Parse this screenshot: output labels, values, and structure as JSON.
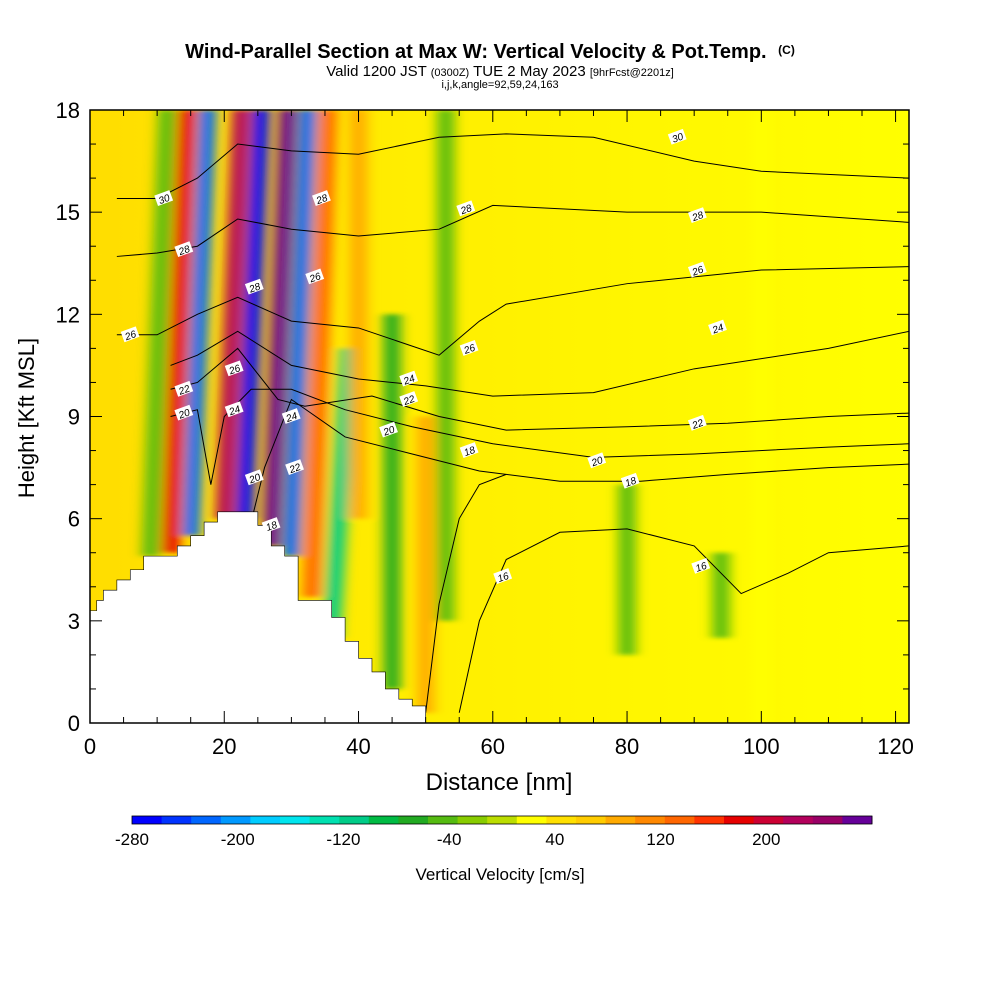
{
  "chart_data": {
    "type": "heatmap",
    "title": "Wind-Parallel Section at Max W: Vertical Velocity & Pot.Temp.",
    "title_suffix": "(C)",
    "subtitle": {
      "valid": "Valid 1200 JST",
      "utc": "(0300Z)",
      "date": "TUE 2 May 2023",
      "fcst": "[9hrFcst@2201z]"
    },
    "indices_line": "i,j,k,angle=92,59,24,163",
    "xlabel": "Distance [nm]",
    "ylabel": "Height [Kft MSL]",
    "xlim": [
      0,
      122
    ],
    "ylim": [
      0,
      18
    ],
    "x_ticks": [
      0,
      20,
      40,
      60,
      80,
      100,
      120
    ],
    "y_ticks": [
      0,
      3,
      6,
      9,
      12,
      15,
      18
    ],
    "colorbar": {
      "label": "Vertical Velocity [cm/s]",
      "tick_labels": [
        "-280",
        "-200",
        "-120",
        "-40",
        "40",
        "120",
        "200"
      ],
      "tick_values": [
        -280,
        -200,
        -120,
        -40,
        40,
        120,
        200
      ],
      "range": [
        -280,
        280
      ],
      "colors": [
        "#0000ff",
        "#0033ff",
        "#0066ff",
        "#0099ff",
        "#00ccff",
        "#00e5ee",
        "#00e0b0",
        "#00cc88",
        "#00bb44",
        "#22aa22",
        "#55bb11",
        "#88cc00",
        "#bbdd00",
        "#ffff00",
        "#ffe000",
        "#ffcc00",
        "#ffaa00",
        "#ff8800",
        "#ff6600",
        "#ff3300",
        "#e60000",
        "#cc0033",
        "#b3005c",
        "#990066",
        "#660099"
      ]
    },
    "terrain": [
      [
        0,
        3.3
      ],
      [
        1,
        3.6
      ],
      [
        2,
        3.9
      ],
      [
        4,
        4.2
      ],
      [
        6,
        4.5
      ],
      [
        8,
        4.9
      ],
      [
        11,
        4.9
      ],
      [
        13,
        5.2
      ],
      [
        15,
        5.5
      ],
      [
        17,
        5.9
      ],
      [
        19,
        6.2
      ],
      [
        23,
        6.2
      ],
      [
        25,
        5.8
      ],
      [
        27,
        5.2
      ],
      [
        29,
        4.9
      ],
      [
        31,
        3.6
      ],
      [
        33,
        3.6
      ],
      [
        36,
        3.1
      ],
      [
        38,
        2.4
      ],
      [
        40,
        1.9
      ],
      [
        42,
        1.5
      ],
      [
        44,
        1.0
      ],
      [
        46,
        0.7
      ],
      [
        48,
        0.5
      ],
      [
        50,
        0.3
      ]
    ],
    "w_field": {
      "wave_columns": [
        {
          "x": 9,
          "top": 18,
          "bottom": 4.9,
          "w": -50
        },
        {
          "x": 12,
          "top": 18,
          "bottom": 5.0,
          "w": 180
        },
        {
          "x": 15,
          "top": 18,
          "bottom": 5.5,
          "w": -220
        },
        {
          "x": 20,
          "top": 18,
          "bottom": 6.0,
          "w": 230
        },
        {
          "x": 23,
          "top": 18,
          "bottom": 6.0,
          "w": -260
        },
        {
          "x": 27,
          "top": 18,
          "bottom": 5.2,
          "w": 260
        },
        {
          "x": 30,
          "top": 18,
          "bottom": 4.9,
          "w": -230
        },
        {
          "x": 33,
          "top": 18,
          "bottom": 3.7,
          "w": 140
        },
        {
          "x": 36,
          "top": 11,
          "bottom": 2.5,
          "w": -120
        },
        {
          "x": 40,
          "top": 18,
          "bottom": 6.0,
          "w": 90
        },
        {
          "x": 45,
          "top": 12,
          "bottom": 1.0,
          "w": -60
        },
        {
          "x": 50,
          "top": 9,
          "bottom": 0.3,
          "w": 80
        },
        {
          "x": 53,
          "top": 18,
          "bottom": 3.0,
          "w": -50
        },
        {
          "x": 80,
          "top": 7,
          "bottom": 2.0,
          "w": -40
        },
        {
          "x": 94,
          "top": 5,
          "bottom": 2.5,
          "w": -45
        },
        {
          "x": 100,
          "top": 18,
          "bottom": 0,
          "w": 30
        }
      ]
    },
    "theta_contours": [
      {
        "label": "16",
        "points": [
          [
            50,
            0.3
          ],
          [
            52,
            3.5
          ],
          [
            55,
            6.0
          ],
          [
            58,
            7.0
          ],
          [
            62,
            7.3
          ]
        ]
      },
      {
        "label": "16",
        "points": [
          [
            55,
            0.3
          ],
          [
            58,
            3.0
          ],
          [
            62,
            4.8
          ],
          [
            70,
            5.6
          ],
          [
            80,
            5.7
          ],
          [
            90,
            5.2
          ],
          [
            97,
            3.8
          ],
          [
            104,
            4.4
          ],
          [
            110,
            5.0
          ],
          [
            122,
            5.2
          ]
        ]
      },
      {
        "label": "18",
        "points": [
          [
            24,
            5.9
          ],
          [
            26,
            7.5
          ],
          [
            30,
            9.5
          ],
          [
            38,
            8.4
          ],
          [
            48,
            7.9
          ],
          [
            58,
            7.4
          ],
          [
            70,
            7.1
          ],
          [
            82,
            7.1
          ],
          [
            95,
            7.3
          ],
          [
            110,
            7.5
          ],
          [
            122,
            7.6
          ]
        ]
      },
      {
        "label": "20",
        "points": [
          [
            12,
            9.0
          ],
          [
            16,
            9.2
          ],
          [
            18,
            7.0
          ],
          [
            20,
            9.0
          ],
          [
            24,
            9.8
          ],
          [
            30,
            9.8
          ],
          [
            38,
            9.2
          ],
          [
            48,
            8.7
          ],
          [
            60,
            8.2
          ],
          [
            75,
            7.8
          ],
          [
            90,
            7.9
          ],
          [
            110,
            8.1
          ],
          [
            122,
            8.2
          ]
        ]
      },
      {
        "label": "22",
        "points": [
          [
            12,
            9.8
          ],
          [
            16,
            10.0
          ],
          [
            22,
            11.0
          ],
          [
            28,
            9.5
          ],
          [
            32,
            9.3
          ],
          [
            42,
            9.6
          ],
          [
            52,
            9.0
          ],
          [
            62,
            8.6
          ],
          [
            80,
            8.7
          ],
          [
            95,
            8.8
          ],
          [
            110,
            9.0
          ],
          [
            122,
            9.1
          ]
        ]
      },
      {
        "label": "24",
        "points": [
          [
            12,
            10.5
          ],
          [
            16,
            10.8
          ],
          [
            22,
            11.5
          ],
          [
            30,
            10.5
          ],
          [
            40,
            10.1
          ],
          [
            50,
            9.9
          ],
          [
            60,
            9.6
          ],
          [
            75,
            9.7
          ],
          [
            90,
            10.4
          ],
          [
            110,
            11.0
          ],
          [
            122,
            11.5
          ]
        ]
      },
      {
        "label": "26",
        "points": [
          [
            4,
            11.4
          ],
          [
            10,
            11.4
          ],
          [
            16,
            12.0
          ],
          [
            22,
            12.5
          ],
          [
            30,
            11.8
          ],
          [
            40,
            11.6
          ],
          [
            52,
            10.8
          ],
          [
            58,
            11.8
          ],
          [
            62,
            12.3
          ],
          [
            80,
            12.9
          ],
          [
            100,
            13.3
          ],
          [
            122,
            13.4
          ]
        ]
      },
      {
        "label": "28",
        "points": [
          [
            4,
            13.7
          ],
          [
            10,
            13.8
          ],
          [
            16,
            14.0
          ],
          [
            22,
            14.8
          ],
          [
            30,
            14.5
          ],
          [
            40,
            14.3
          ],
          [
            52,
            14.5
          ],
          [
            60,
            15.2
          ],
          [
            80,
            15.0
          ],
          [
            100,
            15.0
          ],
          [
            122,
            14.7
          ]
        ]
      },
      {
        "label": "30",
        "points": [
          [
            4,
            15.4
          ],
          [
            10,
            15.4
          ],
          [
            16,
            16.0
          ],
          [
            22,
            17.0
          ],
          [
            30,
            16.8
          ],
          [
            40,
            16.7
          ],
          [
            52,
            17.2
          ],
          [
            62,
            17.3
          ],
          [
            75,
            17.2
          ],
          [
            90,
            16.5
          ],
          [
            100,
            16.2
          ],
          [
            122,
            16.0
          ]
        ]
      }
    ],
    "contour_labels": [
      {
        "text": "30",
        "x": 11,
        "y": 15.4
      },
      {
        "text": "28",
        "x": 14,
        "y": 13.9
      },
      {
        "text": "26",
        "x": 6,
        "y": 11.4
      },
      {
        "text": "22",
        "x": 14,
        "y": 9.8
      },
      {
        "text": "20",
        "x": 14,
        "y": 9.1
      },
      {
        "text": "26",
        "x": 21.5,
        "y": 10.4
      },
      {
        "text": "24",
        "x": 21.5,
        "y": 9.2
      },
      {
        "text": "28",
        "x": 24.5,
        "y": 12.8
      },
      {
        "text": "28",
        "x": 34.5,
        "y": 15.4
      },
      {
        "text": "26",
        "x": 33.5,
        "y": 13.1
      },
      {
        "text": "24",
        "x": 30,
        "y": 9.0
      },
      {
        "text": "22",
        "x": 30.5,
        "y": 7.5
      },
      {
        "text": "20",
        "x": 24.5,
        "y": 7.2
      },
      {
        "text": "18",
        "x": 27,
        "y": 5.8
      },
      {
        "text": "28",
        "x": 56,
        "y": 15.1
      },
      {
        "text": "26",
        "x": 56.5,
        "y": 11.0
      },
      {
        "text": "24",
        "x": 47.5,
        "y": 10.1
      },
      {
        "text": "22",
        "x": 47.5,
        "y": 9.5
      },
      {
        "text": "20",
        "x": 44.5,
        "y": 8.6
      },
      {
        "text": "18",
        "x": 56.5,
        "y": 8.0
      },
      {
        "text": "16",
        "x": 61.5,
        "y": 4.3
      },
      {
        "text": "30",
        "x": 87.5,
        "y": 17.2
      },
      {
        "text": "28",
        "x": 90.5,
        "y": 14.9
      },
      {
        "text": "26",
        "x": 90.5,
        "y": 13.3
      },
      {
        "text": "24",
        "x": 93.5,
        "y": 11.6
      },
      {
        "text": "22",
        "x": 90.5,
        "y": 8.8
      },
      {
        "text": "20",
        "x": 75.5,
        "y": 7.7
      },
      {
        "text": "18",
        "x": 80.5,
        "y": 7.1
      },
      {
        "text": "16",
        "x": 91,
        "y": 4.6
      }
    ]
  }
}
